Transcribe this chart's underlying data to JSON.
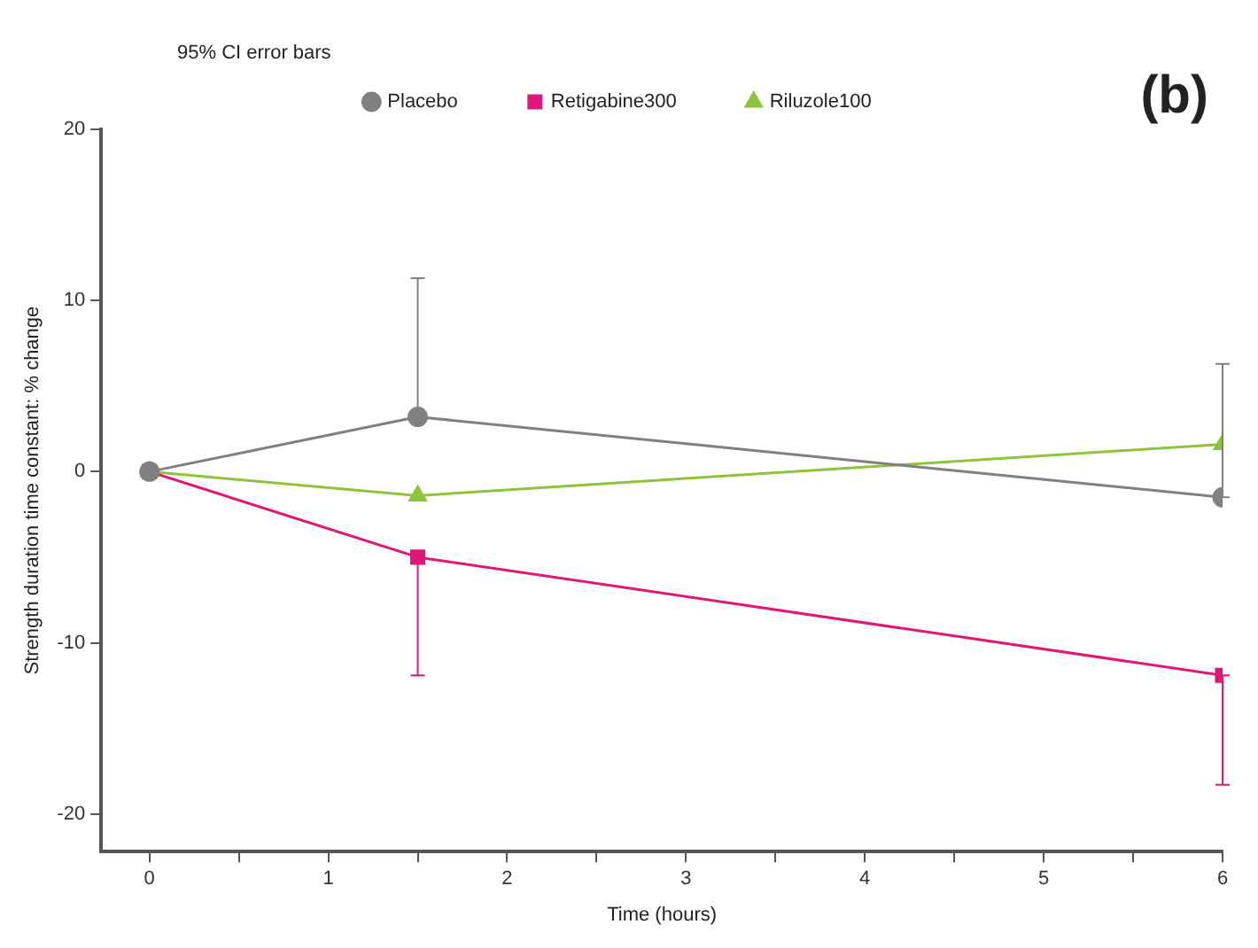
{
  "chart_data": {
    "type": "line",
    "xlabel": "Time (hours)",
    "ylabel": "Strength duration time constant: % change",
    "annotations": [
      "95% CI error bars",
      "(b)"
    ],
    "legend": "top",
    "grid": false,
    "xlim": [
      -0.27,
      6
    ],
    "ylim": [
      -22.2,
      20
    ],
    "xticks": [
      0,
      {
        "value": 0.5,
        "label": null
      },
      1,
      {
        "value": 1.5,
        "label": null
      },
      2,
      {
        "value": 2.5,
        "label": null
      },
      3,
      {
        "value": 3.5,
        "label": null
      },
      4,
      {
        "value": 4.5,
        "label": null
      },
      5,
      {
        "value": 5.5,
        "label": null
      },
      6
    ],
    "yticks": [
      -20,
      -10,
      0,
      10,
      20
    ],
    "x": [
      0,
      1.5,
      6
    ],
    "series": [
      {
        "name": "Placebo",
        "color": "#808080",
        "marker": "circle",
        "values": [
          0,
          3.2,
          -1.5
        ],
        "errors": [
          null,
          [
            3.2,
            11.3
          ],
          [
            -1.5,
            6.3
          ]
        ]
      },
      {
        "name": "Retigabine300",
        "color": "#e0177a",
        "marker": "square",
        "values": [
          0,
          -5.0,
          -11.9
        ],
        "errors": [
          null,
          [
            -11.9,
            -5.0
          ],
          [
            -18.3,
            -11.9
          ]
        ]
      },
      {
        "name": "Riluzole100",
        "color": "#8cc43c",
        "marker": "triangle",
        "values": [
          0,
          -1.4,
          1.6
        ]
      }
    ]
  }
}
